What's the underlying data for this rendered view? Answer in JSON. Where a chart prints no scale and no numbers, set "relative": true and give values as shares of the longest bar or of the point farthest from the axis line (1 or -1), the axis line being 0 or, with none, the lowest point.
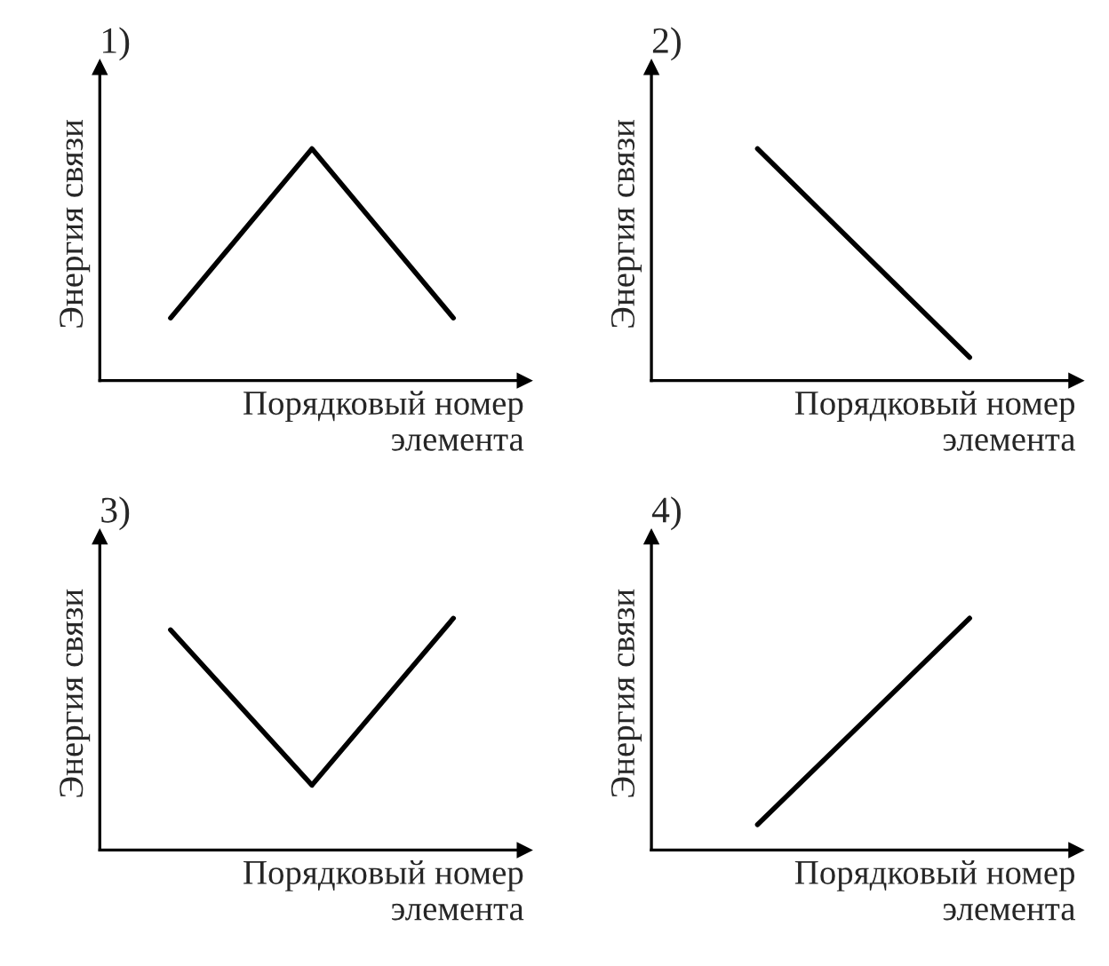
{
  "chart_data": [
    {
      "type": "line",
      "title": "1)",
      "xlabel": "Порядковый номер\nэлемента",
      "ylabel": "Энергия связи",
      "relative": true,
      "categories": [
        null,
        null,
        null
      ],
      "series": [
        {
          "color": "#000000",
          "values": [
            0.27,
            1,
            0.27
          ]
        }
      ]
    },
    {
      "type": "line",
      "title": "2)",
      "xlabel": "Порядковый номер\nэлемента",
      "ylabel": "Энергия связи",
      "relative": true,
      "categories": [
        null,
        null
      ],
      "series": [
        {
          "color": "#000000",
          "values": [
            1,
            0.1
          ]
        }
      ]
    },
    {
      "type": "line",
      "title": "3)",
      "xlabel": "Порядковый номер\nэлемента",
      "ylabel": "Энергия связи",
      "relative": true,
      "categories": [
        null,
        null,
        null
      ],
      "series": [
        {
          "color": "#000000",
          "values": [
            0.95,
            0.28,
            1
          ]
        }
      ]
    },
    {
      "type": "line",
      "title": "4)",
      "xlabel": "Порядковый номер\nэлемента",
      "ylabel": "Энергия связи",
      "relative": true,
      "categories": [
        null,
        null
      ],
      "series": [
        {
          "color": "#000000",
          "values": [
            0.11,
            1
          ]
        }
      ]
    }
  ]
}
